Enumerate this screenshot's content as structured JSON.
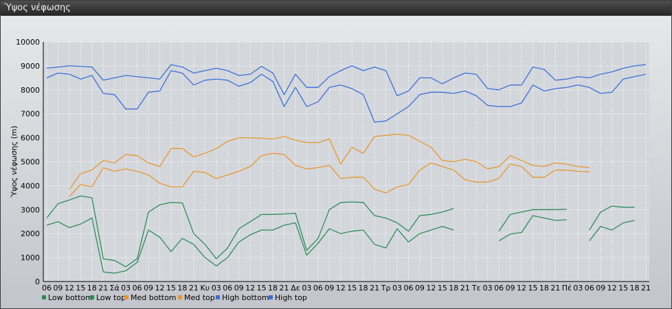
{
  "window": {
    "title": "Ύψος νέφωσης"
  },
  "chart_data": {
    "type": "line",
    "ylabel": "Ύψος νέφωσης (m)",
    "ylim": [
      0,
      10000
    ],
    "yticks": [
      0,
      1000,
      2000,
      3000,
      4000,
      5000,
      6000,
      7000,
      8000,
      9000,
      10000
    ],
    "grid": true,
    "legend_position": "bottom-left",
    "x": [
      "06",
      "09",
      "12",
      "15",
      "18",
      "21",
      "Σά",
      "03",
      "06",
      "09",
      "12",
      "15",
      "18",
      "21",
      "Κυ",
      "03",
      "06",
      "09",
      "12",
      "15",
      "18",
      "21",
      "Δε",
      "03",
      "06",
      "09",
      "12",
      "15",
      "18",
      "21",
      "Τρ",
      "03",
      "06",
      "09",
      "12",
      "15",
      "18",
      "21",
      "Τε",
      "03",
      "06",
      "09",
      "12",
      "15",
      "18",
      "21",
      "Πέ",
      "03",
      "06",
      "09",
      "12",
      "15",
      "18",
      "21"
    ],
    "series": [
      {
        "name": "Low bottom",
        "color": "#2e8b57",
        "values": [
          2350,
          2500,
          2250,
          2400,
          2650,
          400,
          350,
          450,
          800,
          2150,
          1850,
          1250,
          1800,
          1550,
          1000,
          650,
          1000,
          1650,
          1950,
          2150,
          2150,
          2350,
          2450,
          1100,
          1600,
          2200,
          2000,
          2100,
          2150,
          1550,
          1400,
          2200,
          1650,
          2000,
          2150,
          2300,
          2150,
          null,
          null,
          null,
          1700,
          1980,
          2050,
          2750,
          2650,
          2550,
          2580,
          null,
          1700,
          2300,
          2150,
          2450,
          2550,
          null
        ]
      },
      {
        "name": "Low top",
        "color": "#2e8b57",
        "values": [
          2650,
          3250,
          3400,
          3570,
          3500,
          950,
          880,
          620,
          950,
          2900,
          3200,
          3300,
          3280,
          2000,
          1550,
          950,
          1400,
          2200,
          2500,
          2800,
          2800,
          2820,
          2850,
          1300,
          1800,
          3000,
          3300,
          3320,
          3300,
          2750,
          2650,
          2450,
          2100,
          2750,
          2800,
          2900,
          3050,
          null,
          null,
          null,
          2100,
          2800,
          2900,
          3000,
          3000,
          3000,
          3020,
          null,
          2150,
          2900,
          3150,
          3100,
          3100,
          null
        ]
      },
      {
        "name": "Med bottom",
        "color": "#e8962b",
        "values": [
          null,
          null,
          3550,
          4050,
          3950,
          4750,
          4600,
          4700,
          4600,
          4450,
          4100,
          3950,
          3950,
          4600,
          4550,
          4300,
          4450,
          4600,
          4800,
          5250,
          5350,
          5300,
          4850,
          4700,
          4750,
          4850,
          4300,
          4350,
          4350,
          3850,
          3700,
          3950,
          4050,
          4650,
          4950,
          4800,
          4650,
          4250,
          4150,
          4150,
          4300,
          4900,
          4800,
          4350,
          4350,
          4650,
          4650,
          4600,
          4580,
          null,
          null,
          null,
          4550,
          null
        ]
      },
      {
        "name": "Med top",
        "color": "#e8962b",
        "values": [
          null,
          null,
          3850,
          4500,
          4650,
          5050,
          4950,
          5300,
          5250,
          4950,
          4800,
          5550,
          5550,
          5200,
          5350,
          5550,
          5850,
          6000,
          6000,
          5980,
          5950,
          6050,
          5900,
          5800,
          5800,
          5950,
          4900,
          5600,
          5350,
          6050,
          6100,
          6150,
          6100,
          5850,
          5600,
          5050,
          5000,
          5100,
          5000,
          4700,
          4800,
          5250,
          5050,
          4850,
          4800,
          4950,
          4900,
          4800,
          4750,
          null,
          null,
          null,
          4750,
          null
        ]
      },
      {
        "name": "High bottom",
        "color": "#3a6fd8",
        "values": [
          8500,
          8700,
          8650,
          8450,
          8600,
          7850,
          7800,
          7200,
          7200,
          7900,
          7950,
          8800,
          8700,
          8200,
          8400,
          8450,
          8400,
          8150,
          8300,
          8650,
          8350,
          7300,
          8100,
          7300,
          7500,
          8100,
          8200,
          8050,
          7800,
          6650,
          6700,
          7000,
          7300,
          7800,
          7900,
          7900,
          7850,
          7950,
          7750,
          7350,
          7300,
          7300,
          7450,
          8200,
          7950,
          8050,
          8100,
          8200,
          8100,
          7850,
          7900,
          8450,
          8550,
          8650
        ]
      },
      {
        "name": "High top",
        "color": "#3a6fd8",
        "values": [
          8900,
          8950,
          9000,
          8980,
          8950,
          8400,
          8500,
          8600,
          8550,
          8500,
          8450,
          9050,
          8950,
          8700,
          8800,
          8900,
          8800,
          8600,
          8650,
          8980,
          8700,
          7800,
          8650,
          8100,
          8100,
          8550,
          8800,
          9000,
          8800,
          8950,
          8800,
          7750,
          7950,
          8500,
          8500,
          8250,
          8500,
          8700,
          8650,
          8050,
          8000,
          8200,
          8200,
          8950,
          8850,
          8400,
          8450,
          8550,
          8500,
          8650,
          8750,
          8900,
          9000,
          9050
        ]
      }
    ]
  }
}
